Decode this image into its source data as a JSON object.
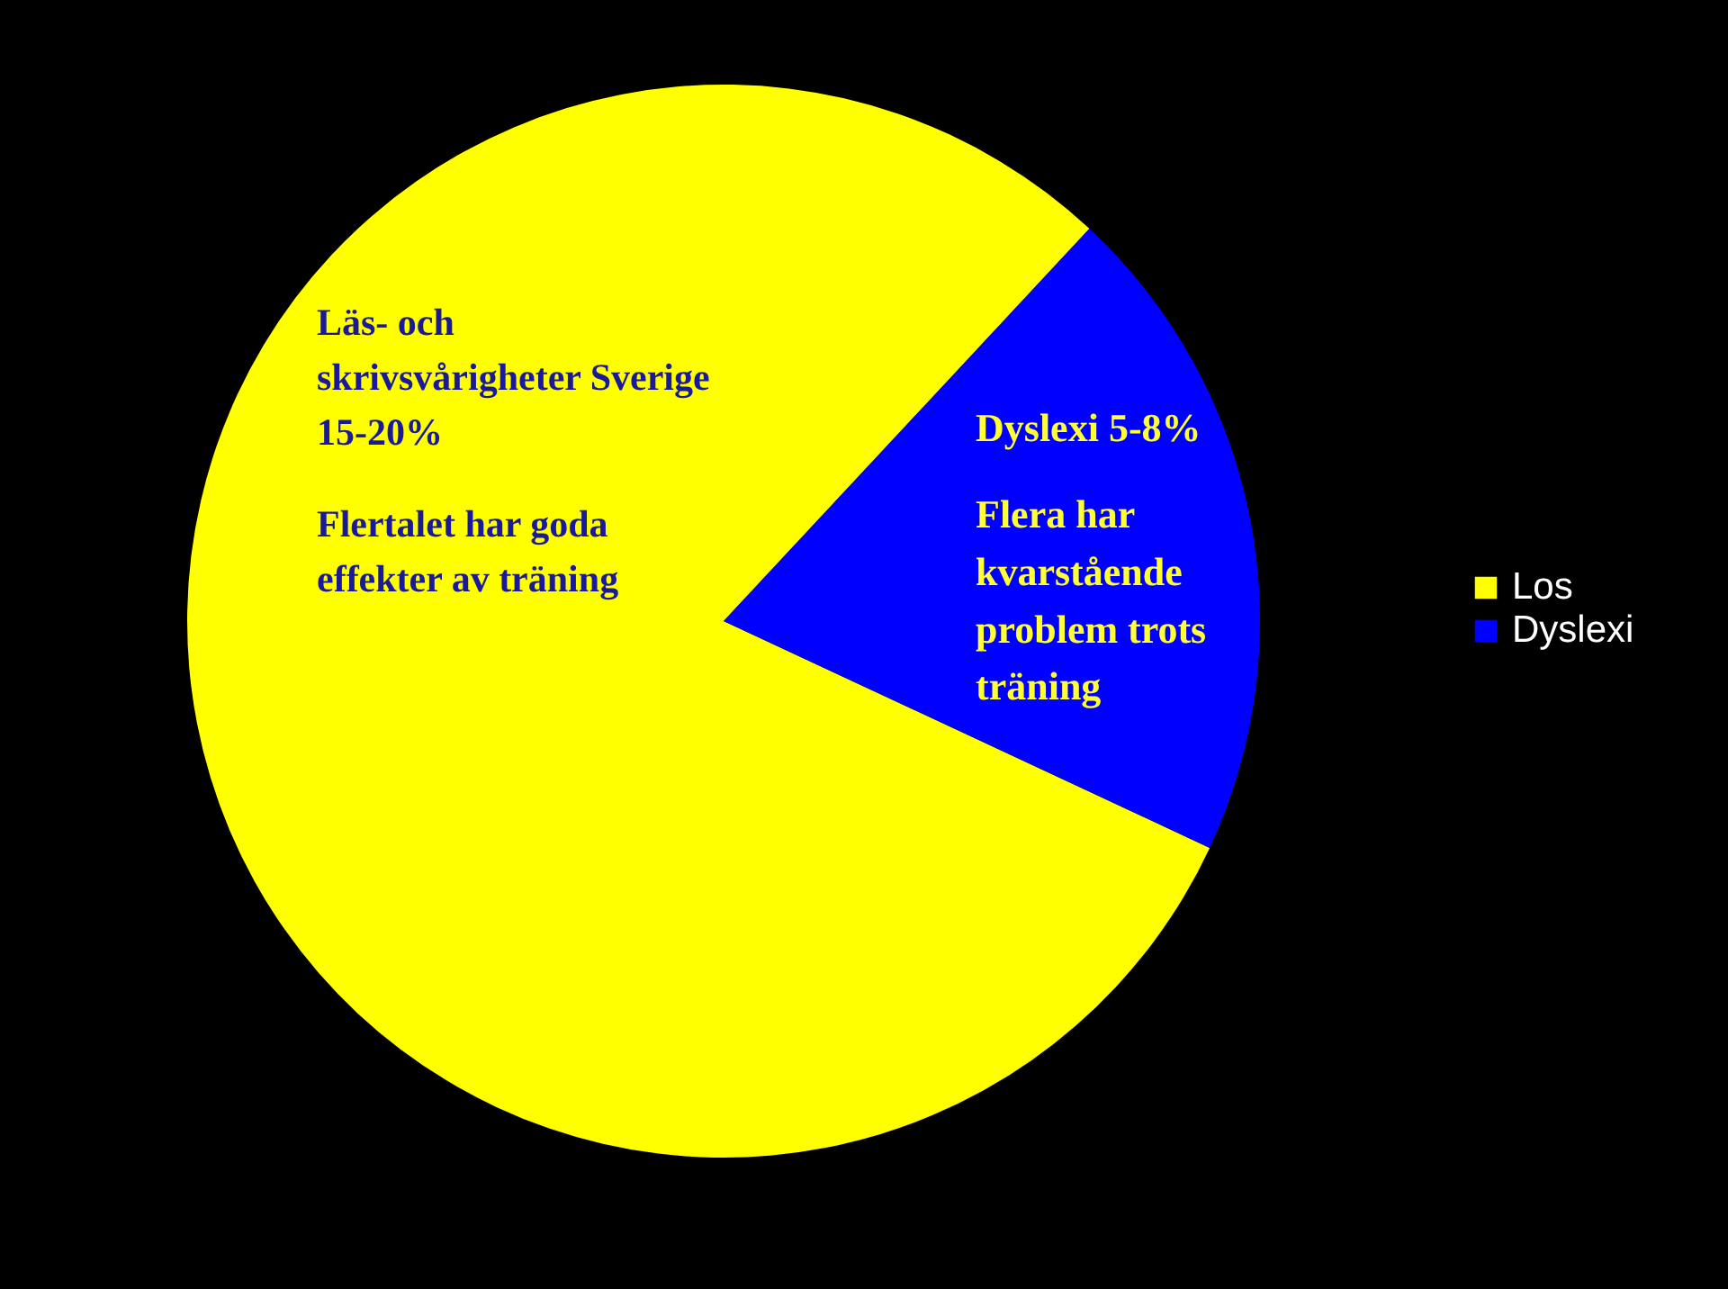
{
  "chart_data": {
    "type": "pie",
    "categories": [
      "Los",
      "Dyslexi"
    ],
    "values": [
      80,
      20
    ],
    "colors": [
      "#ffff00",
      "#0000ff"
    ],
    "legend": "right",
    "annotations": [
      "Läs- och\nskrivsvårigheter   Sverige\n15-20%",
      "Flertalet har goda\neffekter av träning",
      "Dyslexi 5-8%",
      "Flera har\nkvarstående\nproblem trots\nträning"
    ]
  }
}
